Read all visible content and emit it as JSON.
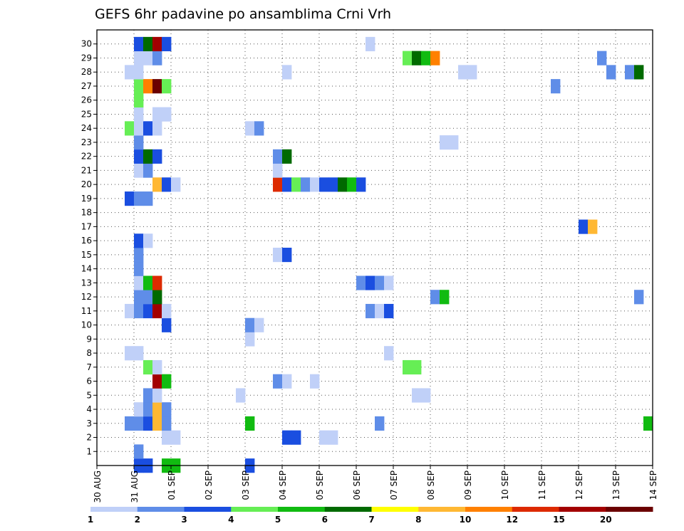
{
  "chart_data": {
    "type": "heatmap",
    "title": "GEFS 6hr padavine po ansamblima Crni Vrh",
    "xlabel": "",
    "ylabel": "",
    "x_start": "30 AUG",
    "x_end": "14 SEP",
    "x_step_hours": 6,
    "x_ticks": [
      "30 AUG",
      "31 AUG",
      "01 SEP",
      "02 SEP",
      "03 SEP",
      "04 SEP",
      "05 SEP",
      "06 SEP",
      "07 SEP",
      "08 SEP",
      "09 SEP",
      "10 SEP",
      "11 SEP",
      "12 SEP",
      "13 SEP",
      "14 SEP"
    ],
    "y_ticks": [
      1,
      2,
      3,
      4,
      5,
      6,
      7,
      8,
      9,
      10,
      11,
      12,
      13,
      14,
      15,
      16,
      17,
      18,
      19,
      20,
      21,
      22,
      23,
      24,
      25,
      26,
      27,
      28,
      29,
      30
    ],
    "ylim": [
      0,
      30
    ],
    "grid": true,
    "levels": [
      1,
      2,
      3,
      4,
      5,
      6,
      7,
      8,
      10,
      12,
      15,
      20
    ],
    "colors": [
      "#c0d0f8",
      "#5f8de8",
      "#1a4ee0",
      "#66ee55",
      "#11bb11",
      "#006a00",
      "#ffff00",
      "#ffb833",
      "#ff8000",
      "#dd2a00",
      "#a30000",
      "#6b0000"
    ],
    "cells": [
      [
        0,
        4,
        3
      ],
      [
        0,
        5,
        3
      ],
      [
        0,
        7,
        5
      ],
      [
        0,
        8,
        5
      ],
      [
        0,
        16,
        3
      ],
      [
        1,
        4,
        2
      ],
      [
        2,
        7,
        1
      ],
      [
        2,
        8,
        1
      ],
      [
        2,
        20,
        3
      ],
      [
        2,
        21,
        3
      ],
      [
        2,
        24,
        1
      ],
      [
        2,
        25,
        1
      ],
      [
        3,
        3,
        2
      ],
      [
        3,
        4,
        2
      ],
      [
        3,
        5,
        3
      ],
      [
        3,
        6,
        8
      ],
      [
        3,
        7,
        2
      ],
      [
        3,
        16,
        5
      ],
      [
        3,
        30,
        2
      ],
      [
        3,
        59,
        5
      ],
      [
        4,
        4,
        1
      ],
      [
        4,
        5,
        2
      ],
      [
        4,
        6,
        8
      ],
      [
        4,
        7,
        2
      ],
      [
        5,
        5,
        2
      ],
      [
        5,
        6,
        1
      ],
      [
        5,
        15,
        1
      ],
      [
        5,
        34,
        1
      ],
      [
        5,
        35,
        1
      ],
      [
        6,
        6,
        11
      ],
      [
        6,
        7,
        5
      ],
      [
        6,
        19,
        2
      ],
      [
        6,
        20,
        1
      ],
      [
        6,
        23,
        1
      ],
      [
        7,
        5,
        4
      ],
      [
        7,
        6,
        1
      ],
      [
        7,
        33,
        4
      ],
      [
        7,
        34,
        4
      ],
      [
        8,
        3,
        1
      ],
      [
        8,
        4,
        1
      ],
      [
        8,
        31,
        1
      ],
      [
        9,
        16,
        1
      ],
      [
        10,
        7,
        3
      ],
      [
        10,
        16,
        2
      ],
      [
        10,
        17,
        1
      ],
      [
        11,
        3,
        1
      ],
      [
        11,
        4,
        2
      ],
      [
        11,
        5,
        3
      ],
      [
        11,
        6,
        11
      ],
      [
        11,
        7,
        1
      ],
      [
        11,
        29,
        2
      ],
      [
        11,
        30,
        1
      ],
      [
        11,
        31,
        3
      ],
      [
        12,
        4,
        2
      ],
      [
        12,
        5,
        2
      ],
      [
        12,
        6,
        6
      ],
      [
        12,
        36,
        2
      ],
      [
        12,
        37,
        5
      ],
      [
        12,
        58,
        2
      ],
      [
        13,
        4,
        1
      ],
      [
        13,
        5,
        5
      ],
      [
        13,
        6,
        10
      ],
      [
        13,
        28,
        2
      ],
      [
        13,
        29,
        3
      ],
      [
        13,
        30,
        2
      ],
      [
        13,
        31,
        1
      ],
      [
        14,
        4,
        2
      ],
      [
        15,
        4,
        2
      ],
      [
        15,
        19,
        1
      ],
      [
        15,
        20,
        3
      ],
      [
        16,
        4,
        3
      ],
      [
        16,
        5,
        1
      ],
      [
        17,
        52,
        3
      ],
      [
        17,
        53,
        8
      ],
      [
        19,
        3,
        3
      ],
      [
        19,
        4,
        2
      ],
      [
        19,
        5,
        2
      ],
      [
        20,
        6,
        8
      ],
      [
        20,
        7,
        3
      ],
      [
        20,
        8,
        1
      ],
      [
        20,
        19,
        10
      ],
      [
        20,
        20,
        3
      ],
      [
        20,
        21,
        4
      ],
      [
        20,
        22,
        2
      ],
      [
        20,
        23,
        1
      ],
      [
        20,
        24,
        3
      ],
      [
        20,
        25,
        3
      ],
      [
        20,
        26,
        6
      ],
      [
        20,
        27,
        5
      ],
      [
        20,
        28,
        3
      ],
      [
        21,
        4,
        1
      ],
      [
        21,
        5,
        2
      ],
      [
        21,
        19,
        1
      ],
      [
        22,
        4,
        3
      ],
      [
        22,
        5,
        6
      ],
      [
        22,
        6,
        3
      ],
      [
        22,
        19,
        2
      ],
      [
        22,
        20,
        6
      ],
      [
        23,
        4,
        2
      ],
      [
        23,
        37,
        1
      ],
      [
        23,
        38,
        1
      ],
      [
        24,
        3,
        4
      ],
      [
        24,
        4,
        1
      ],
      [
        24,
        5,
        3
      ],
      [
        24,
        6,
        1
      ],
      [
        24,
        16,
        1
      ],
      [
        24,
        17,
        2
      ],
      [
        25,
        4,
        1
      ],
      [
        25,
        6,
        1
      ],
      [
        25,
        7,
        1
      ],
      [
        26,
        4,
        4
      ],
      [
        27,
        4,
        4
      ],
      [
        27,
        5,
        9
      ],
      [
        27,
        6,
        12
      ],
      [
        27,
        7,
        4
      ],
      [
        27,
        49,
        2
      ],
      [
        28,
        3,
        1
      ],
      [
        28,
        4,
        1
      ],
      [
        28,
        20,
        1
      ],
      [
        28,
        39,
        1
      ],
      [
        28,
        40,
        1
      ],
      [
        28,
        55,
        2
      ],
      [
        28,
        57,
        2
      ],
      [
        28,
        58,
        6
      ],
      [
        29,
        4,
        1
      ],
      [
        29,
        5,
        1
      ],
      [
        29,
        6,
        2
      ],
      [
        29,
        33,
        4
      ],
      [
        29,
        34,
        6
      ],
      [
        29,
        35,
        5
      ],
      [
        29,
        36,
        9
      ],
      [
        29,
        54,
        2
      ],
      [
        30,
        4,
        3
      ],
      [
        30,
        5,
        6
      ],
      [
        30,
        6,
        11
      ],
      [
        30,
        7,
        3
      ],
      [
        30,
        29,
        1
      ]
    ]
  }
}
